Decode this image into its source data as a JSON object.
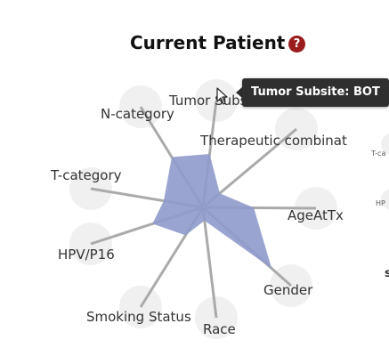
{
  "panel": {
    "title": "Current Patient",
    "help_icon": "question-circle-icon",
    "help_glyph": "?"
  },
  "chart_data": {
    "type": "radar",
    "title": "",
    "axes": [
      "Tumor Subsite",
      "Therapeutic combination",
      "AgeAtTx",
      "Gender",
      "Race",
      "Smoking Status",
      "HPV/P16",
      "T-category",
      "N-category"
    ],
    "axis_labels_shown": [
      "Tumor Subsite",
      "Therapeutic combinat",
      "AgeAtTx",
      "Gender",
      "Race",
      "Smoking Status",
      "HPV/P16",
      "T-category",
      "N-category"
    ],
    "values": [
      0.5,
      0.18,
      0.45,
      0.78,
      0.12,
      0.28,
      0.45,
      0.35,
      0.5
    ],
    "range": [
      0,
      1
    ],
    "fill_color": "#8f9acb",
    "axis_color": "#aaaaaa"
  },
  "tooltip": {
    "text": "Tumor Subsite: BOT"
  },
  "neighbor_panel": {
    "labels": [
      "T-ca",
      "HP"
    ],
    "glyph": "s"
  },
  "colors": {
    "tooltip_bg": "#2f2f2f",
    "help_icon": "#9b1c1c",
    "marker_circle": "#f0f0f0"
  }
}
